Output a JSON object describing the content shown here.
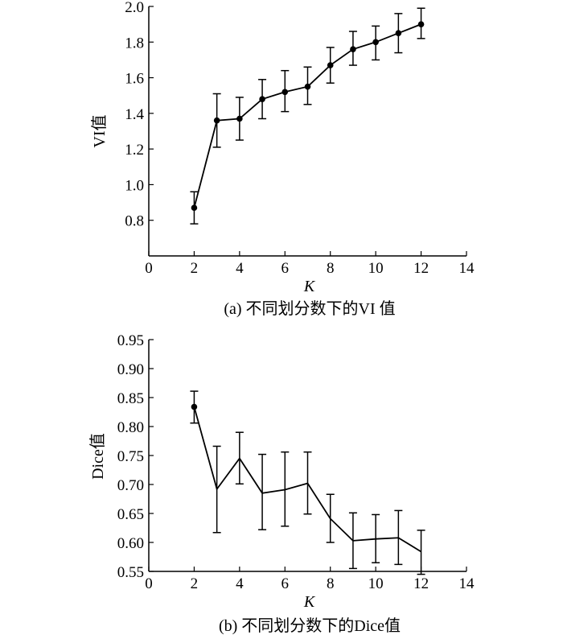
{
  "chart_data": [
    {
      "type": "line",
      "caption": "(a) 不同划分数下的VI 值",
      "xlabel": "K",
      "ylabel": "VI值",
      "xlim": [
        0,
        14
      ],
      "ylim": [
        0.6,
        2.0
      ],
      "xticks": [
        "0",
        "2",
        "4",
        "6",
        "8",
        "10",
        "12",
        "14"
      ],
      "yticks": [
        "0.8",
        "1.0",
        "1.2",
        "1.4",
        "1.6",
        "1.8",
        "2.0"
      ],
      "markers": true,
      "series": [
        {
          "x": [
            2,
            3,
            4,
            5,
            6,
            7,
            8,
            9,
            10,
            11,
            12
          ],
          "y": [
            0.87,
            1.36,
            1.37,
            1.48,
            1.52,
            1.55,
            1.67,
            1.76,
            1.8,
            1.85,
            1.9
          ],
          "error_low": [
            0.78,
            1.21,
            1.25,
            1.37,
            1.41,
            1.45,
            1.57,
            1.67,
            1.7,
            1.74,
            1.82
          ],
          "error_high": [
            0.96,
            1.51,
            1.49,
            1.59,
            1.64,
            1.66,
            1.77,
            1.86,
            1.89,
            1.96,
            1.99
          ]
        }
      ]
    },
    {
      "type": "line",
      "caption": "(b) 不同划分数下的Dice值",
      "xlabel": "K",
      "ylabel": "Dice值",
      "xlim": [
        0,
        14
      ],
      "ylim": [
        0.55,
        0.95
      ],
      "xticks": [
        "0",
        "2",
        "4",
        "6",
        "8",
        "10",
        "12",
        "14"
      ],
      "yticks": [
        "0.55",
        "0.60",
        "0.65",
        "0.70",
        "0.75",
        "0.80",
        "0.85",
        "0.90",
        "0.95"
      ],
      "markers": "first point only",
      "series": [
        {
          "x": [
            2,
            3,
            4,
            5,
            6,
            7,
            8,
            9,
            10,
            11,
            12
          ],
          "y": [
            0.834,
            0.692,
            0.745,
            0.685,
            0.691,
            0.702,
            0.641,
            0.603,
            0.606,
            0.608,
            0.584
          ],
          "error_low": [
            0.806,
            0.617,
            0.701,
            0.622,
            0.628,
            0.649,
            0.6,
            0.555,
            0.565,
            0.562,
            0.545
          ],
          "error_high": [
            0.861,
            0.766,
            0.79,
            0.752,
            0.756,
            0.756,
            0.683,
            0.651,
            0.648,
            0.655,
            0.621
          ]
        }
      ]
    }
  ]
}
